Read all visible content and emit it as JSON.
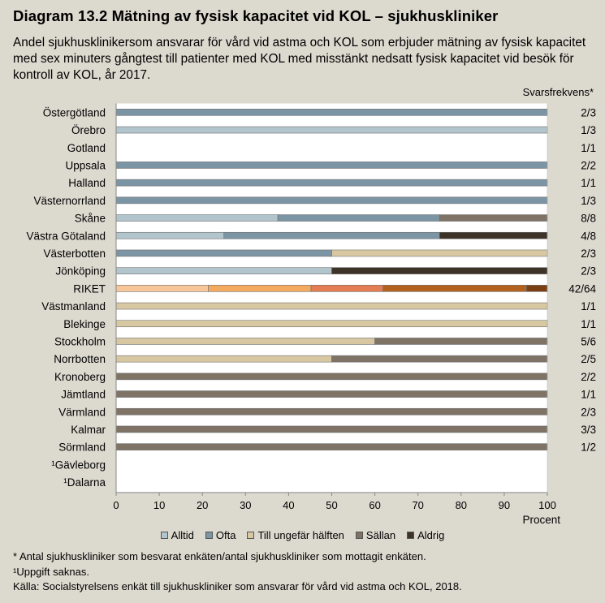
{
  "title": "Diagram 13.2 Mätning av fysisk kapacitet vid KOL – sjukhuskliniker",
  "subtitle": "Andel sjukhusklinikersom ansvarar för vård vid astma och KOL som erbjuder mätning av fysisk kapacitet med sex minuters gångtest till patienter med KOL med misstänkt nedsatt fysisk kapacitet vid besök för kontroll av KOL, år 2017.",
  "response_header": "Svarsfrekvens*",
  "footnotes": [
    "* Antal sjukhuskliniker som besvarat enkäten/antal sjukhuskliniker som mottagit enkäten.",
    "¹Uppgift saknas.",
    "Källa:  Socialstyrelsens enkät till sjukhuskliniker som ansvarar för vård vid astma och KOL, 2018."
  ],
  "chart_data": {
    "type": "bar",
    "orientation": "horizontal",
    "stacked": true,
    "xlabel": "Procent",
    "xlim": [
      0,
      100
    ],
    "xticks": [
      "0",
      "10",
      "20",
      "30",
      "40",
      "50",
      "60",
      "70",
      "80",
      "90",
      "100"
    ],
    "grid": false,
    "legend_position": "bottom",
    "series_names": [
      "Alltid",
      "Ofta",
      "Till ungefär hälften",
      "Sällan",
      "Aldrig"
    ],
    "colors": {
      "normal": [
        "#b2c4cc",
        "#7b95a4",
        "#d8c8a2",
        "#7f7366",
        "#3e3328"
      ],
      "riket": [
        "#f7c79a",
        "#f3a95e",
        "#e47d52",
        "#b2611e",
        "#7b3f14"
      ]
    },
    "rows": [
      {
        "label": "Östergötland",
        "values": [
          0,
          100,
          0,
          0,
          0
        ],
        "response": "2/3"
      },
      {
        "label": "Örebro",
        "values": [
          100,
          0,
          0,
          0,
          0
        ],
        "response": "1/3"
      },
      {
        "label": "Gotland",
        "values": [
          0,
          0,
          0,
          0,
          0
        ],
        "response": "1/1"
      },
      {
        "label": "Uppsala",
        "values": [
          0,
          100,
          0,
          0,
          0
        ],
        "response": "2/2"
      },
      {
        "label": "Halland",
        "values": [
          0,
          100,
          0,
          0,
          0
        ],
        "response": "1/1"
      },
      {
        "label": "Västernorrland",
        "values": [
          0,
          100,
          0,
          0,
          0
        ],
        "response": "1/3"
      },
      {
        "label": "Skåne",
        "values": [
          37.5,
          37.5,
          0,
          25,
          0
        ],
        "response": "8/8"
      },
      {
        "label": "Västra Götaland",
        "values": [
          25,
          50,
          0,
          0,
          25
        ],
        "response": "4/8"
      },
      {
        "label": "Västerbotten",
        "values": [
          0,
          50,
          50,
          0,
          0
        ],
        "response": "2/3"
      },
      {
        "label": "Jönköping",
        "values": [
          50,
          0,
          0,
          0,
          50
        ],
        "response": "2/3"
      },
      {
        "label": "RIKET",
        "values": [
          21.4,
          23.8,
          16.7,
          33.3,
          4.8
        ],
        "response": "42/64",
        "highlight": true
      },
      {
        "label": "Västmanland",
        "values": [
          0,
          0,
          100,
          0,
          0
        ],
        "response": "1/1"
      },
      {
        "label": "Blekinge",
        "values": [
          0,
          0,
          100,
          0,
          0
        ],
        "response": "1/1"
      },
      {
        "label": "Stockholm",
        "values": [
          0,
          0,
          60,
          40,
          0
        ],
        "response": "5/6"
      },
      {
        "label": "Norrbotten",
        "values": [
          0,
          0,
          50,
          50,
          0
        ],
        "response": "2/5"
      },
      {
        "label": "Kronoberg",
        "values": [
          0,
          0,
          0,
          100,
          0
        ],
        "response": "2/2"
      },
      {
        "label": "Jämtland",
        "values": [
          0,
          0,
          0,
          100,
          0
        ],
        "response": "1/1"
      },
      {
        "label": "Värmland",
        "values": [
          0,
          0,
          0,
          100,
          0
        ],
        "response": "2/3"
      },
      {
        "label": "Kalmar",
        "values": [
          0,
          0,
          0,
          100,
          0
        ],
        "response": "3/3"
      },
      {
        "label": "Sörmland",
        "values": [
          0,
          0,
          0,
          100,
          0
        ],
        "response": "1/2"
      },
      {
        "label": "¹Gävleborg",
        "values": [
          0,
          0,
          0,
          0,
          0
        ],
        "response": ""
      },
      {
        "label": "¹Dalarna",
        "values": [
          0,
          0,
          0,
          0,
          0
        ],
        "response": ""
      }
    ]
  }
}
